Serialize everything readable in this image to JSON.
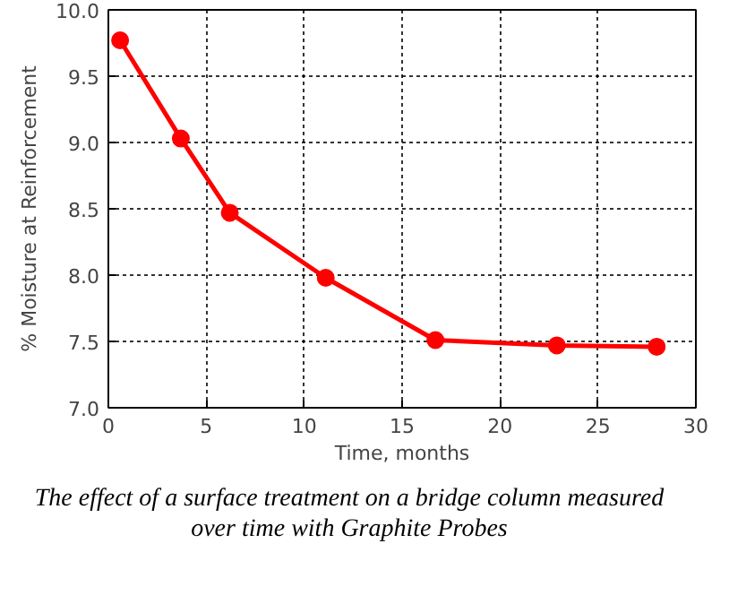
{
  "chart_data": {
    "type": "line",
    "xlabel": "Time, months",
    "ylabel": "% Moisture at Reinforcement",
    "x": [
      0.6,
      3.7,
      6.2,
      11.1,
      16.7,
      22.9,
      28.0
    ],
    "series": [
      {
        "color": "#ff0000",
        "values": [
          9.77,
          9.03,
          8.47,
          7.98,
          7.51,
          7.47,
          7.46
        ]
      }
    ],
    "xlim": [
      0,
      30
    ],
    "ylim": [
      7.0,
      10.0
    ],
    "xticks": [
      0,
      5,
      10,
      15,
      20,
      25,
      30
    ],
    "yticks": [
      {
        "value": 7.0,
        "label": "7.0"
      },
      {
        "value": 7.5,
        "label": "7.5"
      },
      {
        "value": 8.0,
        "label": "8.0"
      },
      {
        "value": 8.5,
        "label": "8.5"
      },
      {
        "value": 9.0,
        "label": "9.0"
      },
      {
        "value": 9.5,
        "label": "9.5"
      },
      {
        "value": 10.0,
        "label": "10.0"
      }
    ],
    "grid": true,
    "marker": "circle",
    "line_style": "solid",
    "annotations": [
      "The effect of a surface treatment on a bridge column measured over time with Graphite Probes"
    ]
  }
}
